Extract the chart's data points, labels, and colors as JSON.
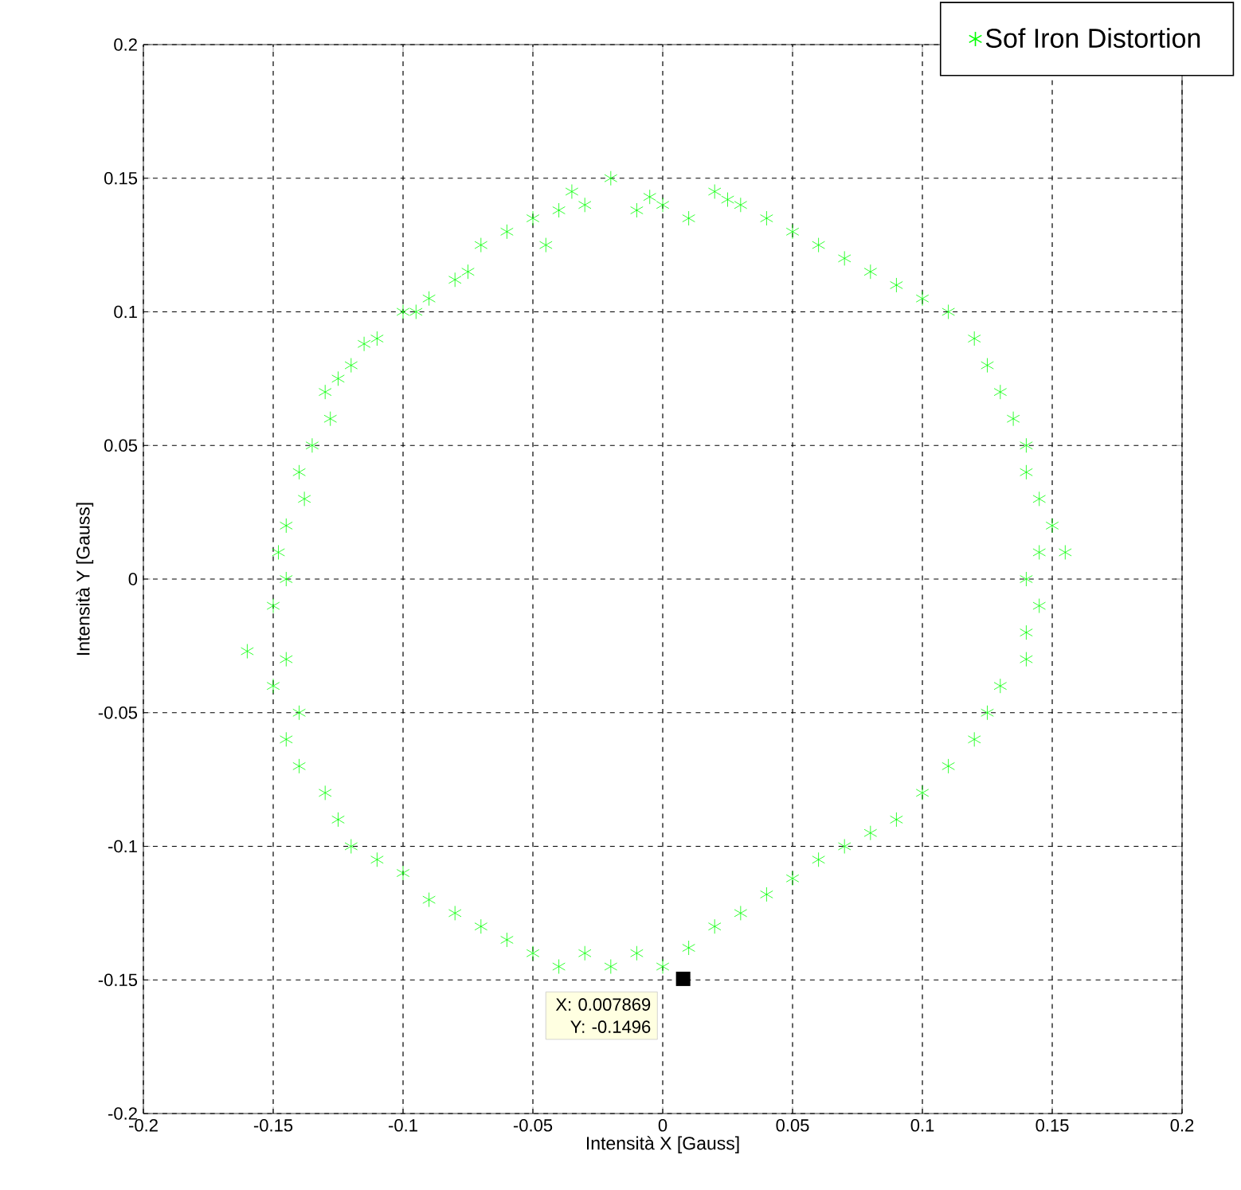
{
  "chart_data": {
    "type": "scatter",
    "xlabel": "Intensità X [Gauss]",
    "ylabel": "Intensità Y [Gauss]",
    "xlim": [
      -0.2,
      0.2
    ],
    "ylim": [
      -0.2,
      0.2
    ],
    "xticks": [
      -0.2,
      -0.15,
      -0.1,
      -0.05,
      0,
      0.05,
      0.1,
      0.15,
      0.2
    ],
    "yticks": [
      -0.2,
      -0.15,
      -0.1,
      -0.05,
      0,
      0.05,
      0.1,
      0.15,
      0.2
    ],
    "grid": true,
    "legend": "top right",
    "marker": "cross",
    "annotations": [
      {
        "text": "X: 0.007869 Y: -0.1496",
        "x": 0.007869,
        "y": -0.1496
      }
    ],
    "series": [
      {
        "name": "Sof Iron Distortion",
        "color": "#00ff00",
        "x": [
          -0.02,
          0.0,
          0.02,
          0.03,
          0.01,
          -0.01,
          -0.03,
          -0.04,
          -0.045,
          -0.05,
          -0.06,
          -0.07,
          -0.075,
          -0.08,
          -0.09,
          -0.095,
          -0.1,
          -0.11,
          -0.115,
          -0.12,
          -0.125,
          -0.13,
          -0.128,
          -0.135,
          -0.14,
          -0.138,
          -0.145,
          -0.148,
          -0.145,
          -0.15,
          -0.16,
          -0.145,
          -0.15,
          -0.14,
          -0.145,
          -0.14,
          -0.13,
          -0.125,
          -0.12,
          -0.11,
          -0.1,
          -0.09,
          -0.08,
          -0.07,
          -0.06,
          -0.05,
          -0.04,
          -0.03,
          -0.02,
          -0.01,
          0.0,
          0.01,
          0.02,
          0.03,
          0.04,
          0.05,
          0.06,
          0.07,
          0.08,
          0.09,
          0.1,
          0.11,
          0.12,
          0.125,
          0.13,
          0.14,
          0.14,
          0.145,
          0.14,
          0.145,
          0.15,
          0.155,
          0.145,
          0.14,
          0.14,
          0.135,
          0.13,
          0.125,
          0.12,
          0.11,
          0.1,
          0.09,
          0.08,
          0.07,
          0.06,
          0.05,
          0.04,
          0.025,
          -0.005,
          -0.035
        ],
        "values": [
          0.15,
          0.14,
          0.145,
          0.14,
          0.135,
          0.138,
          0.14,
          0.138,
          0.125,
          0.135,
          0.13,
          0.125,
          0.115,
          0.112,
          0.105,
          0.1,
          0.1,
          0.09,
          0.088,
          0.08,
          0.075,
          0.07,
          0.06,
          0.05,
          0.04,
          0.03,
          0.02,
          0.01,
          0.0,
          -0.01,
          -0.027,
          -0.03,
          -0.04,
          -0.05,
          -0.06,
          -0.07,
          -0.08,
          -0.09,
          -0.1,
          -0.105,
          -0.11,
          -0.12,
          -0.125,
          -0.13,
          -0.135,
          -0.14,
          -0.145,
          -0.14,
          -0.145,
          -0.14,
          -0.145,
          -0.138,
          -0.13,
          -0.125,
          -0.118,
          -0.112,
          -0.105,
          -0.1,
          -0.095,
          -0.09,
          -0.08,
          -0.07,
          -0.06,
          -0.05,
          -0.04,
          -0.03,
          -0.02,
          -0.01,
          0.0,
          0.01,
          0.02,
          0.01,
          0.03,
          0.04,
          0.05,
          0.06,
          0.07,
          0.08,
          0.09,
          0.1,
          0.105,
          0.11,
          0.115,
          0.12,
          0.125,
          0.13,
          0.135,
          0.142,
          0.143,
          0.145
        ]
      }
    ]
  }
}
